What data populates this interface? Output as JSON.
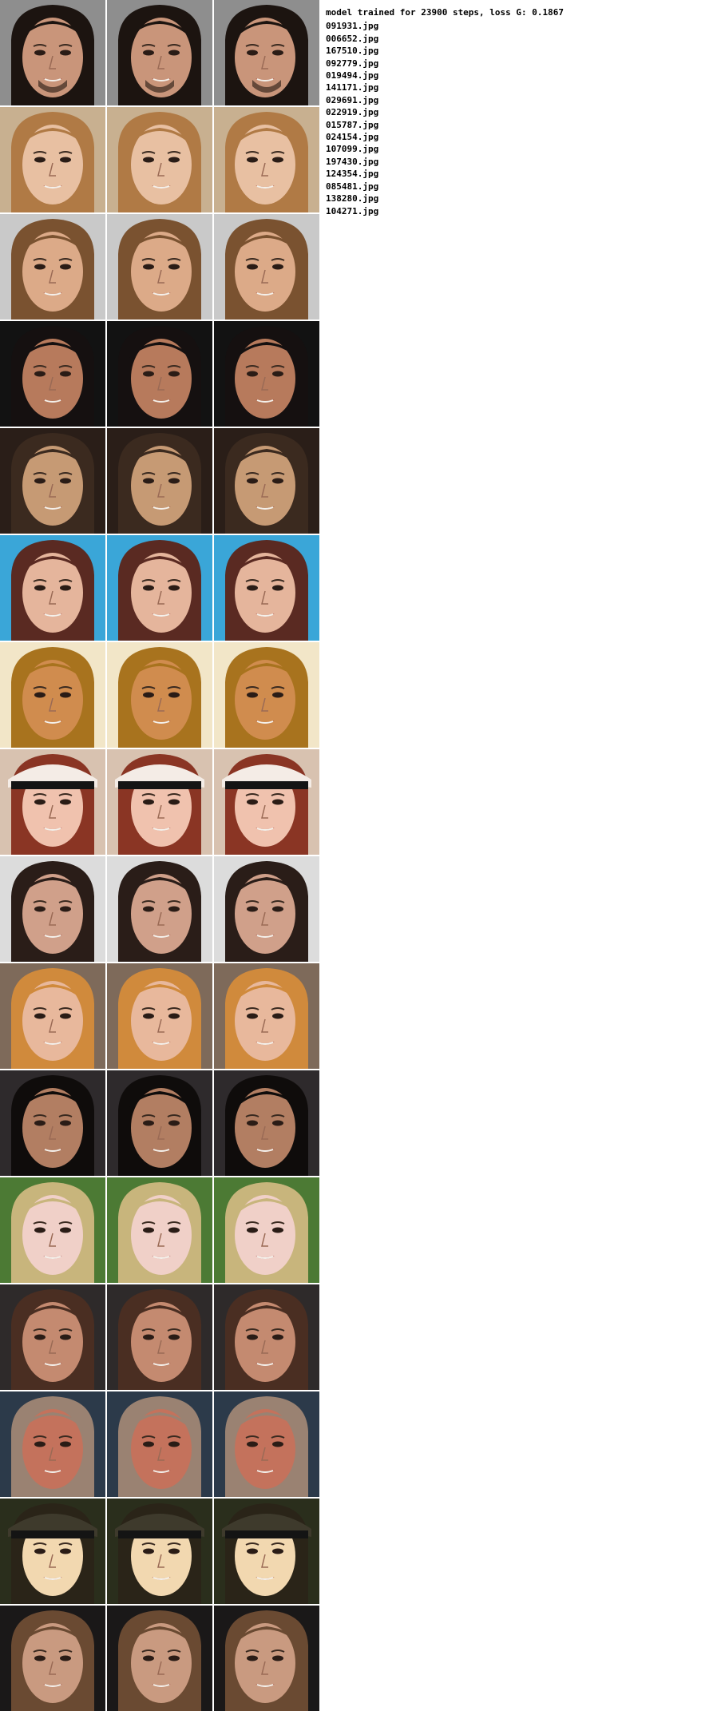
{
  "header": "model trained for 23900 steps, loss G: 0.1867",
  "files": [
    "091931.jpg",
    "006652.jpg",
    "167510.jpg",
    "092779.jpg",
    "019494.jpg",
    "141171.jpg",
    "029691.jpg",
    "022919.jpg",
    "015787.jpg",
    "024154.jpg",
    "107099.jpg",
    "197430.jpg",
    "124354.jpg",
    "085481.jpg",
    "138280.jpg",
    "104271.jpg"
  ],
  "rows": [
    {
      "bg": "#8e8e8e",
      "hair": "#1c1410",
      "skin": "#c9957a",
      "beard": true
    },
    {
      "bg": "#c8b090",
      "hair": "#b07a45",
      "skin": "#e8c0a2"
    },
    {
      "bg": "#c9c9c9",
      "hair": "#7a5230",
      "skin": "#dcaa88"
    },
    {
      "bg": "#121212",
      "hair": "#151010",
      "skin": "#b77a5c"
    },
    {
      "bg": "#2a1e18",
      "hair": "#3b2a1f",
      "skin": "#c69a74"
    },
    {
      "bg": "#3aa6d8",
      "hair": "#5a2a22",
      "skin": "#e5b59c"
    },
    {
      "bg": "#f2e6c8",
      "hair": "#a8731e",
      "skin": "#d08c4e"
    },
    {
      "bg": "#d8c2b0",
      "hair": "#8a3524",
      "skin": "#f0c2ae",
      "hat": "#f4ece6"
    },
    {
      "bg": "#dcdcdc",
      "hair": "#2a1d18",
      "skin": "#d0a08a"
    },
    {
      "bg": "#7e6a5a",
      "hair": "#d08a3c",
      "skin": "#e8b89c"
    },
    {
      "bg": "#2e2a2c",
      "hair": "#0f0c0b",
      "skin": "#b27e62"
    },
    {
      "bg": "#4c7a34",
      "hair": "#c8b57c",
      "skin": "#f0d0c8"
    },
    {
      "bg": "#2e2a2a",
      "hair": "#4a2e22",
      "skin": "#c48a70"
    },
    {
      "bg": "#2c3a4a",
      "hair": "#9a8272",
      "skin": "#c4725c"
    },
    {
      "bg": "#2a2e1c",
      "hair": "#2a2418",
      "skin": "#f2d8b0",
      "hat": "#3e3a2c"
    },
    {
      "bg": "#1a1818",
      "hair": "#6a4a32",
      "skin": "#c99a80"
    }
  ]
}
